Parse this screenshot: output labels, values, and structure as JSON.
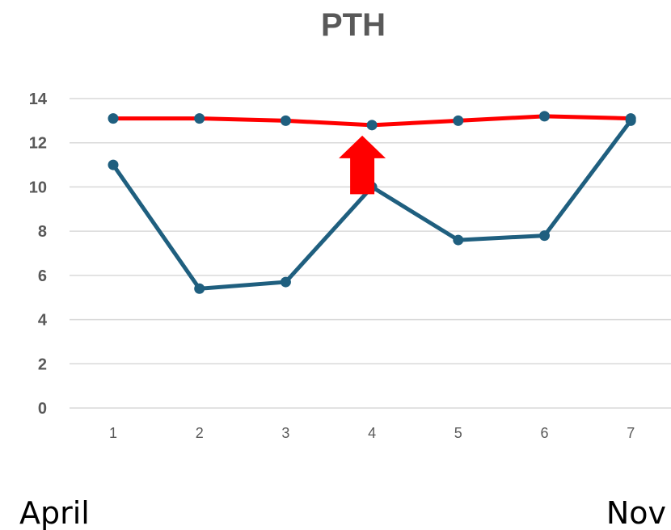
{
  "chart_data": {
    "type": "line",
    "title": "PTH",
    "xlabel": "",
    "ylabel": "",
    "x": [
      1,
      2,
      3,
      4,
      5,
      6,
      7
    ],
    "ylim": [
      0,
      14
    ],
    "yticks": [
      0,
      2,
      4,
      6,
      8,
      10,
      12,
      14
    ],
    "grid": true,
    "legend": "none",
    "series": [
      {
        "values": [
          11.0,
          5.4,
          5.7,
          10.0,
          7.6,
          7.8,
          13.0
        ],
        "color": "#1f5f7f",
        "marker_color": "#1f5f7f"
      },
      {
        "values": [
          13.1,
          13.1,
          13.0,
          12.8,
          13.0,
          13.2,
          13.1
        ],
        "color": "#ff0000",
        "marker_color": "#1f5f7f"
      }
    ],
    "annotations": [
      {
        "type": "arrow-up",
        "x": 4,
        "y_from": 10.0,
        "y_to": 12.8,
        "color": "#ff0000"
      }
    ]
  },
  "footer": {
    "left_label": "April",
    "right_label": "Nov"
  }
}
